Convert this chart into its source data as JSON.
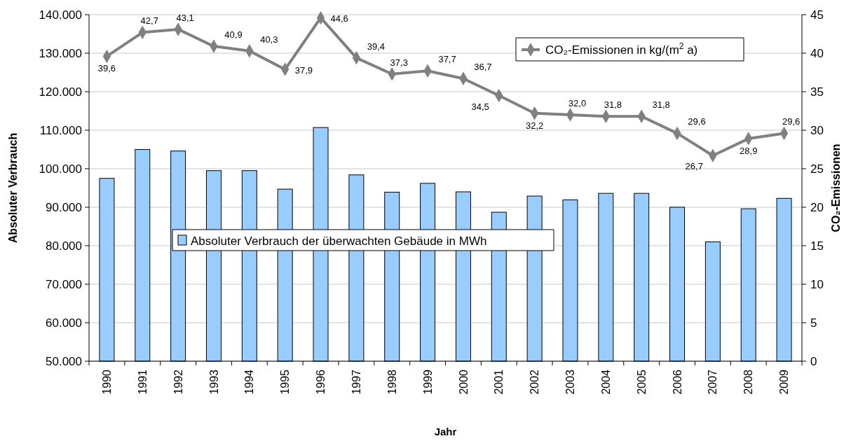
{
  "chart_data": {
    "type": "bar",
    "xlabel": "Jahr",
    "ylabel": "Absoluter Verbrauch",
    "y2label": "CO₂-Emissionen",
    "categories": [
      "1990",
      "1991",
      "1992",
      "1993",
      "1994",
      "1995",
      "1996",
      "1997",
      "1998",
      "1999",
      "2000",
      "2001",
      "2002",
      "2003",
      "2004",
      "2005",
      "2006",
      "2007",
      "2008",
      "2009"
    ],
    "series": [
      {
        "name": "Absoluter Verbrauch der überwachten Gebäude in MWh",
        "color": "#99ccff",
        "values": [
          97500,
          105000,
          104600,
          99500,
          99500,
          94700,
          110700,
          98400,
          93900,
          96200,
          94000,
          88700,
          92900,
          91900,
          93600,
          93600,
          90000,
          81000,
          89600,
          92300
        ]
      },
      {
        "name": "CO₂-Emissionen in kg/(m$^{2}$ a)",
        "type": "line",
        "axis": "y2",
        "color": "#808080",
        "marker": "diamond",
        "values": [
          39.6,
          42.7,
          43.1,
          40.9,
          40.3,
          37.9,
          44.6,
          39.4,
          37.3,
          37.7,
          36.7,
          34.5,
          32.2,
          32.0,
          31.8,
          31.8,
          29.6,
          26.7,
          28.9,
          29.6
        ],
        "value_labels": [
          "39,6",
          "42,7",
          "43,1",
          "40,9",
          "40,3",
          "37,9",
          "44,6",
          "39,4",
          "37,3",
          "37,7",
          "36,7",
          "34,5",
          "32,2",
          "32,0",
          "31,8",
          "31,8",
          "29,6",
          "26,7",
          "28,9",
          "29,6"
        ]
      }
    ],
    "ylim": [
      50000,
      140000
    ],
    "yticks": [
      {
        "value": 50000,
        "label": "50.000"
      },
      {
        "value": 60000,
        "label": "60.000"
      },
      {
        "value": 70000,
        "label": "70.000"
      },
      {
        "value": 80000,
        "label": "80.000"
      },
      {
        "value": 90000,
        "label": "90.000"
      },
      {
        "value": 100000,
        "label": "100.000"
      },
      {
        "value": 110000,
        "label": "110.000"
      },
      {
        "value": 120000,
        "label": "120.000"
      },
      {
        "value": 130000,
        "label": "130.000"
      },
      {
        "value": 140000,
        "label": "140.000"
      }
    ],
    "y2lim": [
      0,
      45
    ],
    "y2ticks": [
      0,
      5,
      10,
      15,
      20,
      25,
      30,
      35,
      40,
      45
    ],
    "grid": "y",
    "legend": "top right"
  }
}
